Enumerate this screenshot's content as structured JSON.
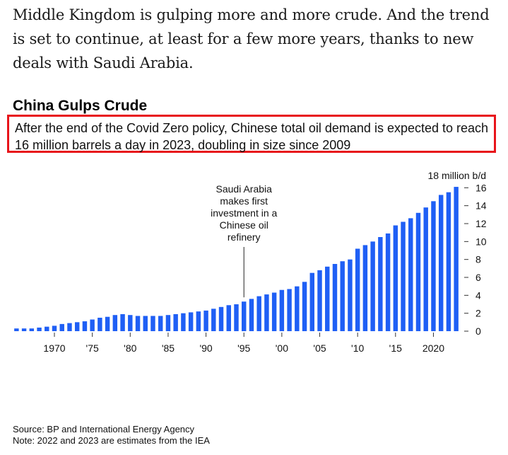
{
  "article": {
    "paragraph": "Middle Kingdom is gulping more and more crude. And the trend is set to continue, at least for a few more years, thanks to new deals with Saudi Arabia."
  },
  "chart_data": {
    "type": "bar",
    "title": "China Gulps Crude",
    "subtitle": "After the end of the Covid Zero policy, Chinese total oil demand is expected to reach 16 million barrels a day in 2023, doubling in size since 2009",
    "unit_label": "18 million b/d",
    "ylabel": "million b/d",
    "ylim": [
      0,
      18
    ],
    "y_ticks": [
      0,
      2,
      4,
      6,
      8,
      10,
      12,
      14,
      16
    ],
    "x_ticks": [
      {
        "year": 1970,
        "label": "1970"
      },
      {
        "year": 1975,
        "label": "'75"
      },
      {
        "year": 1980,
        "label": "'80"
      },
      {
        "year": 1985,
        "label": "'85"
      },
      {
        "year": 1990,
        "label": "'90"
      },
      {
        "year": 1995,
        "label": "'95"
      },
      {
        "year": 2000,
        "label": "'00"
      },
      {
        "year": 2005,
        "label": "'05"
      },
      {
        "year": 2010,
        "label": "'10"
      },
      {
        "year": 2015,
        "label": "'15"
      },
      {
        "year": 2020,
        "label": "2020"
      }
    ],
    "years": [
      1965,
      1966,
      1967,
      1968,
      1969,
      1970,
      1971,
      1972,
      1973,
      1974,
      1975,
      1976,
      1977,
      1978,
      1979,
      1980,
      1981,
      1982,
      1983,
      1984,
      1985,
      1986,
      1987,
      1988,
      1989,
      1990,
      1991,
      1992,
      1993,
      1994,
      1995,
      1996,
      1997,
      1998,
      1999,
      2000,
      2001,
      2002,
      2003,
      2004,
      2005,
      2006,
      2007,
      2008,
      2009,
      2010,
      2011,
      2012,
      2013,
      2014,
      2015,
      2016,
      2017,
      2018,
      2019,
      2020,
      2021,
      2022,
      2023
    ],
    "values": [
      0.3,
      0.3,
      0.3,
      0.4,
      0.5,
      0.6,
      0.8,
      0.9,
      1.0,
      1.1,
      1.3,
      1.5,
      1.6,
      1.8,
      1.9,
      1.8,
      1.7,
      1.7,
      1.7,
      1.7,
      1.8,
      1.9,
      2.0,
      2.1,
      2.2,
      2.3,
      2.5,
      2.7,
      2.9,
      3.0,
      3.3,
      3.6,
      3.9,
      4.1,
      4.3,
      4.6,
      4.7,
      5.0,
      5.5,
      6.5,
      6.8,
      7.2,
      7.5,
      7.8,
      8.0,
      9.2,
      9.6,
      10.0,
      10.5,
      10.9,
      11.8,
      12.2,
      12.6,
      13.2,
      13.8,
      14.5,
      15.2,
      15.5,
      16.1
    ],
    "annotation": {
      "year": 1995,
      "text_lines": [
        "Saudi Arabia",
        "makes first",
        "investment in a",
        "Chinese oil",
        "refinery"
      ]
    },
    "bar_color": "#1f5ff5",
    "source": "Source: BP and International Energy Agency",
    "note": "Note: 2022 and 2023 are estimates from the IEA"
  },
  "colors": {
    "highlight_border": "#e8141b"
  }
}
